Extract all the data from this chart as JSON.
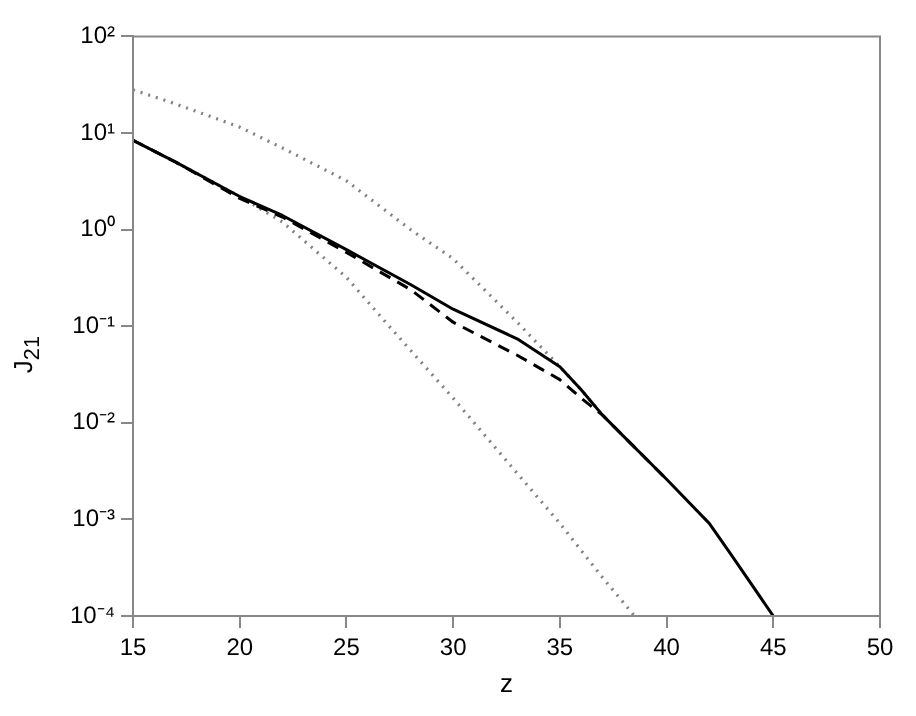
{
  "chart_data": {
    "type": "line",
    "xlabel": "z",
    "ylabel": "J$_{21}$",
    "log": "y",
    "grid": false,
    "legend": false,
    "marker": "none",
    "xlim": [
      15,
      50
    ],
    "xticks": [
      15,
      20,
      25,
      30,
      35,
      40,
      45,
      50
    ],
    "ylim": [
      0.0001,
      100
    ],
    "yticks": [
      {
        "value": 0.0001,
        "label": "10⁻⁴"
      },
      {
        "value": 0.001,
        "label": "10⁻³"
      },
      {
        "value": 0.01,
        "label": "10⁻²"
      },
      {
        "value": 0.1,
        "label": "10⁻¹"
      },
      {
        "value": 1,
        "label": "10⁰"
      },
      {
        "value": 10,
        "label": "10¹"
      },
      {
        "value": 100,
        "label": "10²"
      }
    ],
    "series": [
      {
        "color": "#000000",
        "line_style": "solid",
        "x": [
          15,
          17,
          20,
          22,
          25,
          28,
          30,
          33,
          35,
          36,
          37,
          38,
          40,
          42,
          43,
          45
        ],
        "values": [
          8.4,
          5.0,
          2.2,
          1.4,
          0.62,
          0.27,
          0.15,
          0.074,
          0.038,
          0.022,
          0.012,
          0.0072,
          0.0026,
          0.00091,
          0.00044,
          0.0001
        ]
      },
      {
        "color": "#000000",
        "line_style": "dashed",
        "x": [
          15,
          17,
          20,
          22,
          25,
          28,
          30,
          33,
          35,
          36,
          37,
          38,
          40
        ],
        "values": [
          8.4,
          5.0,
          2.1,
          1.35,
          0.58,
          0.24,
          0.11,
          0.05,
          0.028,
          0.018,
          0.012,
          0.0072,
          0.0026
        ]
      },
      {
        "color": "#808080",
        "line_style": "dotted",
        "x": [
          15,
          17,
          20,
          22,
          25,
          28,
          30,
          33,
          35,
          36,
          37
        ],
        "values": [
          28,
          20,
          11.5,
          7,
          3.2,
          1.0,
          0.5,
          0.11,
          0.038,
          0.022,
          0.012
        ]
      },
      {
        "color": "#808080",
        "line_style": "dotted",
        "x": [
          15,
          17,
          20,
          22,
          25,
          27,
          30,
          33,
          35,
          37,
          38.5
        ],
        "values": [
          8.4,
          5.0,
          2.2,
          1.2,
          0.32,
          0.1,
          0.018,
          0.003,
          0.00091,
          0.00025,
          0.0001
        ]
      }
    ]
  }
}
